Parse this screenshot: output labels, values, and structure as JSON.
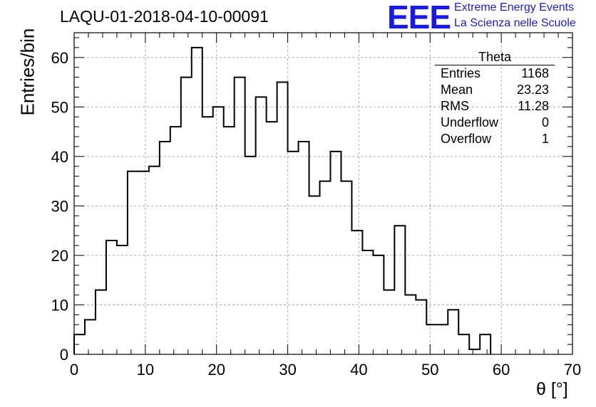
{
  "title": "LAQU-01-2018-04-10-00091",
  "branding": {
    "logo": "EEE",
    "line1": "Extreme Energy Events",
    "line2": "La Scienza nelle Scuole",
    "color": "#1a1ae6"
  },
  "stats_box": {
    "title": "Theta",
    "rows": [
      {
        "label": "Entries",
        "value": "1168"
      },
      {
        "label": "Mean",
        "value": "23.23"
      },
      {
        "label": "RMS",
        "value": "11.28"
      },
      {
        "label": "Underflow",
        "value": "0"
      },
      {
        "label": "Overflow",
        "value": "1"
      }
    ]
  },
  "chart_data": {
    "type": "bar",
    "style": "step-histogram",
    "xlabel": "θ [°]",
    "ylabel": "Entries/bin",
    "xlim": [
      0,
      70
    ],
    "ylim": [
      0,
      65
    ],
    "x_ticks": [
      0,
      10,
      20,
      30,
      40,
      50,
      60,
      70
    ],
    "y_ticks": [
      0,
      10,
      20,
      30,
      40,
      50,
      60
    ],
    "grid": true,
    "bin_width": 1.5,
    "bin_start": 0,
    "values": [
      4,
      7,
      13,
      23,
      22,
      37,
      37,
      38,
      43,
      46,
      56,
      62,
      48,
      50,
      46,
      56,
      40,
      52,
      47,
      55,
      41,
      43,
      32,
      35,
      41,
      35,
      25,
      21,
      20,
      13,
      26,
      12,
      11,
      6,
      6,
      9,
      4,
      1,
      4
    ]
  }
}
